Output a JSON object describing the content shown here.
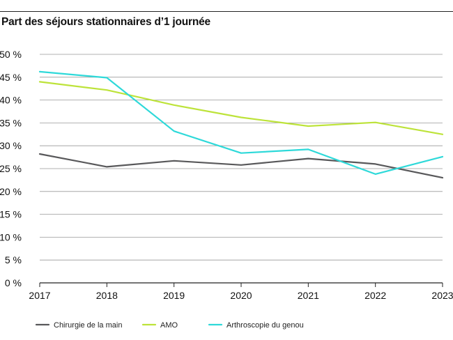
{
  "chart_data": {
    "type": "line",
    "title": "Part des séjours stationnaires d’1 journée",
    "xlabel": "",
    "ylabel": "",
    "x": [
      "2017",
      "2018",
      "2019",
      "2020",
      "2021",
      "2022",
      "2023"
    ],
    "y_ticks": [
      0,
      5,
      10,
      15,
      20,
      25,
      30,
      35,
      40,
      45,
      50
    ],
    "y_tick_labels": [
      "0 %",
      "5 %",
      "10 %",
      "15 %",
      "20 %",
      "25 %",
      "30 %",
      "35 %",
      "40 %",
      "45 %",
      "50 %"
    ],
    "ylim": [
      0,
      50
    ],
    "grid": true,
    "legend_position": "bottom",
    "series": [
      {
        "name": "Chirurgie de la main",
        "color": "#58585a",
        "values": [
          28.2,
          25.4,
          26.7,
          25.8,
          27.2,
          26.0,
          23.0
        ]
      },
      {
        "name": "AMO",
        "color": "#bde33a",
        "values": [
          44.0,
          42.2,
          38.9,
          36.2,
          34.3,
          35.1,
          32.5
        ]
      },
      {
        "name": "Arthroscopie du genou",
        "color": "#2ed9d9",
        "values": [
          46.2,
          44.9,
          33.2,
          28.4,
          29.2,
          23.8,
          27.6
        ]
      }
    ]
  }
}
